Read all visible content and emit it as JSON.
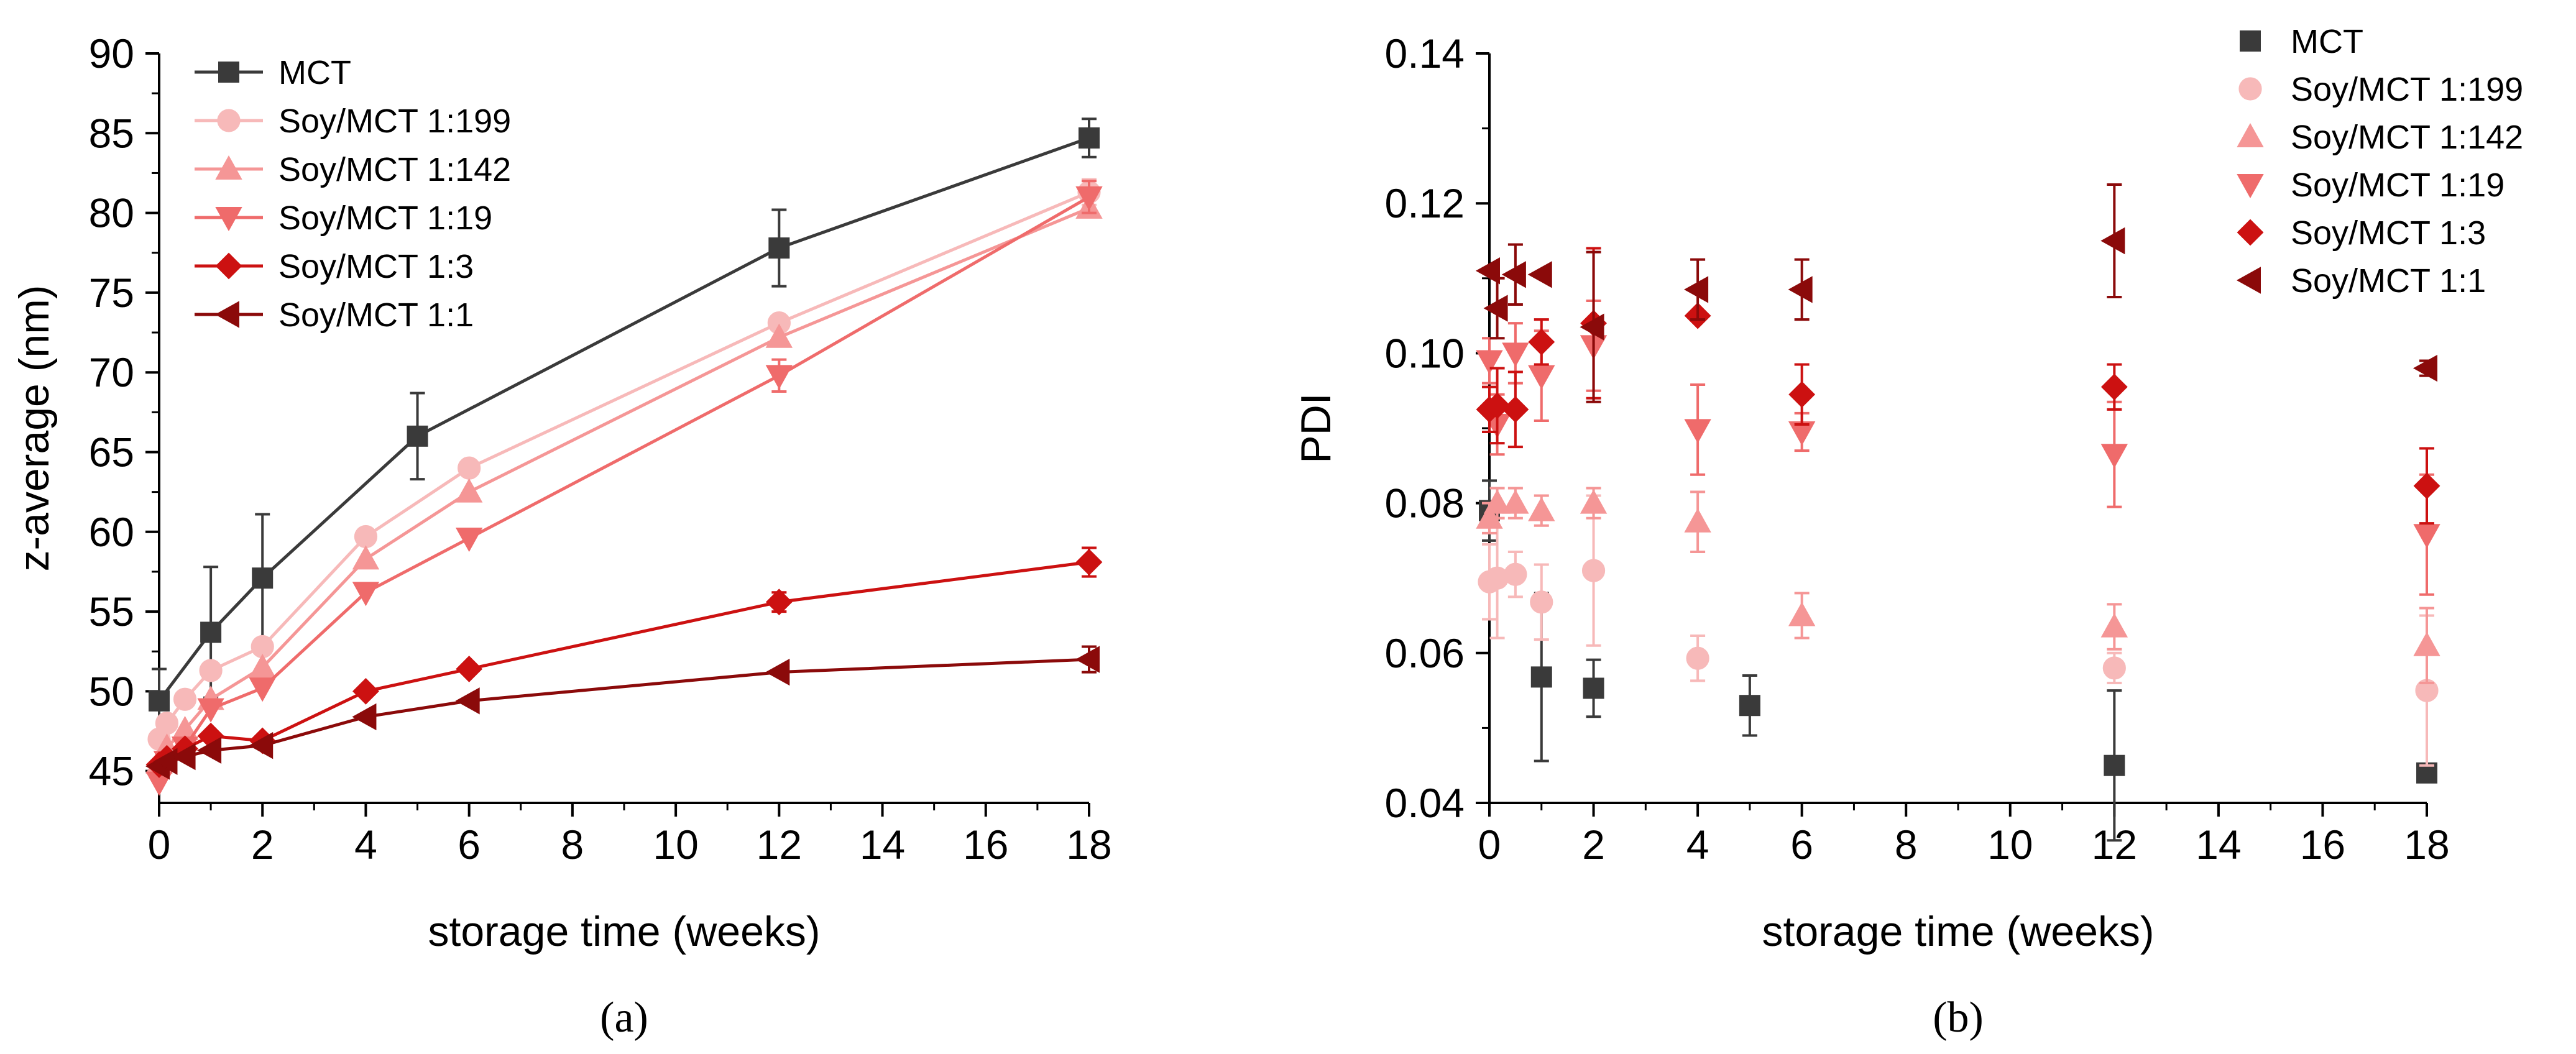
{
  "chart_data": [
    {
      "type": "line",
      "panel_label": "(a)",
      "xlabel": "storage time (weeks)",
      "ylabel": "z-average (nm)",
      "xlim": [
        0,
        18
      ],
      "ylim": [
        43,
        90
      ],
      "xticks": [
        0,
        2,
        4,
        6,
        8,
        10,
        12,
        14,
        16,
        18
      ],
      "yticks": [
        45,
        50,
        55,
        60,
        65,
        70,
        75,
        80,
        85,
        90
      ],
      "legend_position": "top-left",
      "series": [
        {
          "name": "MCT",
          "color": "#3a3a3a",
          "marker": "square",
          "x": [
            0,
            1,
            2,
            5,
            12,
            18
          ],
          "y": [
            49.4,
            53.7,
            57.1,
            66.0,
            77.8,
            84.7
          ],
          "err": [
            2.0,
            4.1,
            4.0,
            2.7,
            2.4,
            1.2
          ]
        },
        {
          "name": "Soy/MCT 1:199",
          "color": "#f7b9b9",
          "marker": "circle",
          "x": [
            0,
            0.15,
            0.5,
            1,
            2,
            4,
            6,
            12,
            18
          ],
          "y": [
            47.0,
            48.0,
            49.5,
            51.3,
            52.8,
            59.7,
            64.0,
            73.1,
            81.3
          ],
          "err": [
            0,
            0,
            0,
            0,
            0,
            0,
            0,
            0,
            0.8
          ]
        },
        {
          "name": "Soy/MCT 1:142",
          "color": "#f59696",
          "marker": "triangle-up",
          "x": [
            0,
            0.15,
            0.5,
            1,
            2,
            4,
            6,
            12,
            18
          ],
          "y": [
            45.5,
            46.5,
            47.6,
            49.5,
            51.5,
            58.3,
            62.5,
            72.2,
            80.3
          ],
          "err": [
            0,
            0,
            0,
            0,
            0,
            0,
            0,
            0,
            0
          ]
        },
        {
          "name": "Soy/MCT 1:19",
          "color": "#ef6b6b",
          "marker": "triangle-down",
          "x": [
            0,
            0.15,
            0.5,
            1,
            2,
            4,
            6,
            12,
            18
          ],
          "y": [
            44.3,
            45.6,
            46.5,
            48.9,
            50.2,
            56.2,
            59.6,
            69.8,
            81.0
          ],
          "err": [
            0,
            0,
            0,
            0,
            0,
            0,
            0,
            1.0,
            1.0
          ]
        },
        {
          "name": "Soy/MCT 1:3",
          "color": "#cc1111",
          "marker": "diamond",
          "x": [
            0,
            0.15,
            0.5,
            1,
            2,
            4,
            6,
            12,
            18
          ],
          "y": [
            45.4,
            45.8,
            46.4,
            47.2,
            46.9,
            50.0,
            51.4,
            55.6,
            58.1
          ],
          "err": [
            0,
            0,
            0,
            0,
            0,
            0,
            0,
            0.6,
            0.9
          ]
        },
        {
          "name": "Soy/MCT 1:1",
          "color": "#8b0a0a",
          "marker": "triangle-left",
          "x": [
            0,
            0.15,
            0.5,
            1,
            2,
            4,
            6,
            12,
            18
          ],
          "y": [
            45.3,
            45.6,
            45.9,
            46.3,
            46.6,
            48.4,
            49.4,
            51.2,
            52.0
          ],
          "err": [
            0,
            0,
            0,
            0,
            0,
            0,
            0,
            0,
            0.8
          ]
        }
      ]
    },
    {
      "type": "scatter",
      "panel_label": "(b)",
      "xlabel": "storage time (weeks)",
      "ylabel": "PDI",
      "xlim": [
        0,
        18
      ],
      "ylim": [
        0.04,
        0.14
      ],
      "xticks": [
        0,
        2,
        4,
        6,
        8,
        10,
        12,
        14,
        16,
        18
      ],
      "yticks": [
        "0.04",
        "0.06",
        "0.08",
        "0.10",
        "0.12",
        "0.14"
      ],
      "legend_position": "top-right",
      "series": [
        {
          "name": "MCT",
          "color": "#3a3a3a",
          "marker": "square",
          "x": [
            0,
            1,
            2,
            5,
            12,
            18
          ],
          "y": [
            0.079,
            0.0568,
            0.0553,
            0.053,
            0.045,
            0.044
          ],
          "err": [
            0.004,
            0.0112,
            0.0038,
            0.004,
            0.01,
            0
          ]
        },
        {
          "name": "Soy/MCT 1:199",
          "color": "#f7b9b9",
          "marker": "circle",
          "x": [
            0,
            0.15,
            0.5,
            1,
            2,
            4,
            12,
            18
          ],
          "y": [
            0.0695,
            0.07,
            0.0705,
            0.0668,
            0.071,
            0.0593,
            0.058,
            0.055
          ],
          "err": [
            0.005,
            0.008,
            0.003,
            0.005,
            0.01,
            0.003,
            0.002,
            0.01
          ]
        },
        {
          "name": "Soy/MCT 1:142",
          "color": "#f59696",
          "marker": "triangle-up",
          "x": [
            0,
            0.15,
            0.5,
            1,
            2,
            4,
            6,
            12,
            18
          ],
          "y": [
            0.078,
            0.08,
            0.08,
            0.079,
            0.08,
            0.0775,
            0.065,
            0.0635,
            0.061
          ],
          "err": [
            0.002,
            0.002,
            0.002,
            0.002,
            0.002,
            0.004,
            0.003,
            0.003,
            0.005
          ]
        },
        {
          "name": "Soy/MCT 1:19",
          "color": "#ef6b6b",
          "marker": "triangle-down",
          "x": [
            0,
            0.15,
            0.5,
            1,
            2,
            4,
            6,
            12,
            18
          ],
          "y": [
            0.099,
            0.0905,
            0.1,
            0.097,
            0.101,
            0.0898,
            0.0895,
            0.0865,
            0.0758
          ],
          "err": [
            0.003,
            0.004,
            0.004,
            0.006,
            0.006,
            0.006,
            0.0025,
            0.007,
            0.008
          ]
        },
        {
          "name": "Soy/MCT 1:3",
          "color": "#cc1111",
          "marker": "diamond",
          "x": [
            0,
            0.15,
            0.5,
            1,
            2,
            4,
            6,
            12,
            18
          ],
          "y": [
            0.0925,
            0.093,
            0.0925,
            0.1015,
            0.104,
            0.105,
            0.0945,
            0.0955,
            0.0823
          ],
          "err": [
            0.003,
            0.005,
            0.005,
            0.003,
            0.01,
            0,
            0.004,
            0.003,
            0.005
          ]
        },
        {
          "name": "Soy/MCT 1:1",
          "color": "#8b0a0a",
          "marker": "triangle-left",
          "x": [
            0,
            0.15,
            0.5,
            1,
            2,
            4,
            6,
            12,
            18
          ],
          "y": [
            0.111,
            0.106,
            0.1105,
            0.1105,
            0.1035,
            0.1085,
            0.1085,
            0.115,
            0.098
          ],
          "err": [
            0,
            0.004,
            0.004,
            0,
            0.01,
            0.004,
            0.004,
            0.0075,
            0.001
          ]
        }
      ]
    }
  ]
}
